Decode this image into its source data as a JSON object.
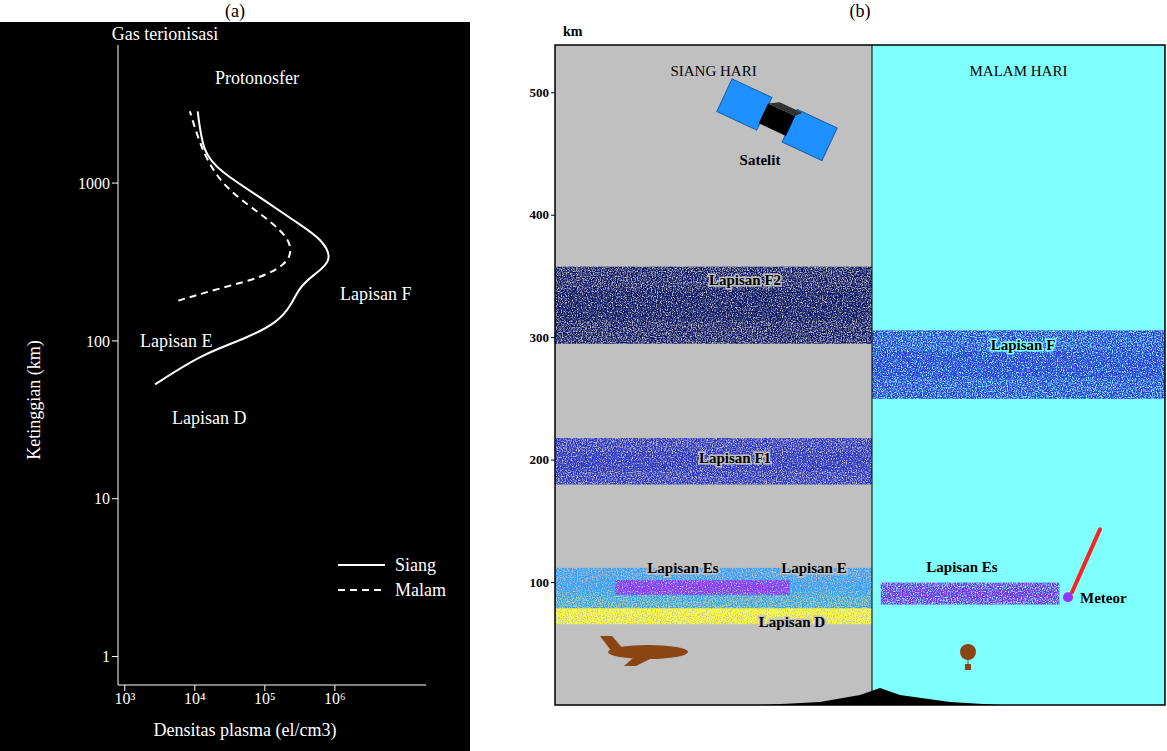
{
  "chart_data": {
    "type": "line",
    "panel_label": "(a)",
    "title": "Gas terionisasi",
    "x_label": "Densitas plasma (el/cm3)",
    "y_label": "Ketinggian (km)",
    "log": true,
    "xlim": [
      800,
      20000000
    ],
    "xticks": [
      {
        "value": 1000,
        "label": "10³"
      },
      {
        "value": 10000,
        "label": "10⁴"
      },
      {
        "value": 100000,
        "label": "10⁵"
      },
      {
        "value": 1000000,
        "label": "10⁶"
      }
    ],
    "ylim": [
      0.66,
      7500
    ],
    "yticks": [
      1,
      10,
      100,
      1000
    ],
    "legend": "lower right",
    "annotations": [
      "Protonosfer",
      "Lapisan F",
      "Lapisan E",
      "Lapisan D"
    ],
    "series": [
      {
        "name": "Siang",
        "color": "#ffffff",
        "line_style": "solid",
        "x": [
          2700,
          12000,
          51000,
          140000,
          230000,
          320000,
          510000,
          800000,
          620000,
          270000,
          85000,
          27000,
          14000,
          11000
        ],
        "values": [
          53,
          79,
          104,
          132,
          168,
          215,
          263,
          327,
          433,
          573,
          811,
          1150,
          1630,
          2850
        ]
      },
      {
        "name": "Malam",
        "color": "#ffffff",
        "line_style": "dashed",
        "x": [
          5800,
          23000,
          85000,
          180000,
          230000,
          190000,
          85000,
          30000,
          14000,
          8500
        ],
        "values": [
          180,
          215,
          255,
          305,
          366,
          465,
          640,
          930,
          1520,
          2850
        ]
      }
    ]
  },
  "diagram": {
    "panel_label": "(b)",
    "axis_label": "km",
    "ylim": [
      0,
      539
    ],
    "yticks": [
      100,
      200,
      300,
      400,
      500
    ],
    "columns": [
      {
        "title": "SIANG HARI",
        "color": "#c0c0c0",
        "layers": [
          {
            "label": "Lapisan D",
            "range": [
              66,
              93
            ],
            "color": "#ffff33"
          },
          {
            "label": "Lapisan E",
            "range": [
              79,
              112
            ],
            "color": "#33a1ff"
          },
          {
            "label": "Lapisan Es",
            "range": [
              90,
              102
            ],
            "color": "#9933ff"
          },
          {
            "label": "Lapisan F1",
            "range": [
              180,
              218
            ],
            "color": "#2a35c8"
          },
          {
            "label": "Lapisan F2",
            "range": [
              295,
              358
            ],
            "color": "#0b1766"
          }
        ],
        "objects": [
          {
            "label": "Satelit",
            "altitude": 478
          }
        ]
      },
      {
        "title": "MALAM HARI",
        "color": "#80ffff",
        "layers": [
          {
            "label": "Lapisan F",
            "range": [
              250,
              306
            ],
            "color": "#2e3ad6"
          },
          {
            "label": "Lapisan Es",
            "range": [
              82,
              100
            ],
            "color": "#7a2ee0"
          }
        ],
        "objects": [
          {
            "label": "Meteor",
            "altitude": 88
          }
        ]
      }
    ]
  }
}
